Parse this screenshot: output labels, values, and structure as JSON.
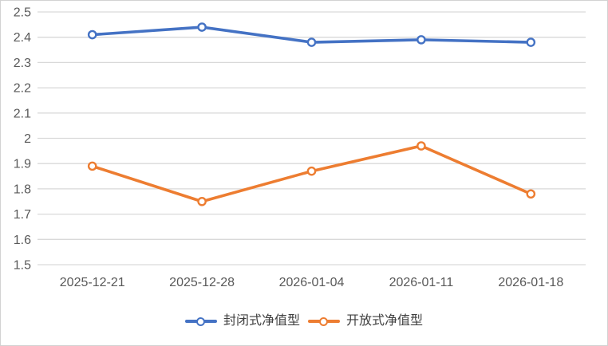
{
  "chart_data": {
    "type": "line",
    "categories": [
      "2025-12-21",
      "2025-12-28",
      "2026-01-04",
      "2026-01-11",
      "2026-01-18"
    ],
    "series": [
      {
        "name": "封闭式净值型",
        "values": [
          2.41,
          2.44,
          2.38,
          2.39,
          2.38
        ],
        "color": "#4472C4"
      },
      {
        "name": "开放式净值型",
        "values": [
          1.89,
          1.75,
          1.87,
          1.97,
          1.78
        ],
        "color": "#ED7D31"
      }
    ],
    "title": "",
    "xlabel": "",
    "ylabel": "",
    "ylim": [
      1.5,
      2.5
    ],
    "ytick_labels": [
      "2.5",
      "2.4",
      "2.3",
      "2.2",
      "2.1",
      "2",
      "1.9",
      "1.8",
      "1.7",
      "1.6",
      "1.5"
    ],
    "grid": "horizontal",
    "legend_position": "bottom",
    "marker": "open-circle",
    "colors": {
      "gridline": "#d9d9d9",
      "axis_label": "#595959",
      "legend_text": "#404040",
      "background": "#ffffff",
      "marker_fill": "#ffffff"
    }
  }
}
